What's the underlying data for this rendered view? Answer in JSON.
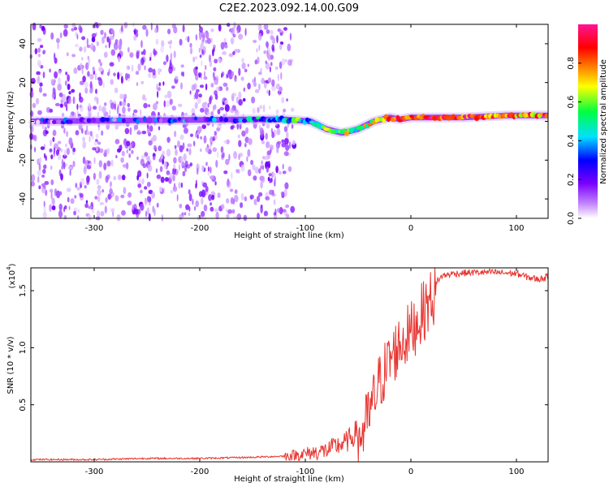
{
  "title": "C2E2.2023.092.14.00.G09",
  "colors": {
    "snr_line": "#e8332e",
    "axis": "#000000",
    "background": "#ffffff"
  },
  "chart_data": [
    {
      "type": "heatmap",
      "title": "C2E2.2023.092.14.00.G09",
      "xlabel": "Height of straight line (km)",
      "ylabel": "Frequency (Hz)",
      "xlim": [
        -360,
        130
      ],
      "ylim": [
        -50,
        50
      ],
      "xticks": [
        -300,
        -200,
        -100,
        0,
        100
      ],
      "yticks": [
        -40,
        -20,
        0,
        20,
        40
      ],
      "colorbar": {
        "label": "Normalized spectral amplitude",
        "range": [
          0,
          1
        ],
        "ticks": [
          "0.0",
          "0.2",
          "0.4",
          "0.6",
          "0.8"
        ],
        "tick_values": [
          0,
          0.2,
          0.4,
          0.6,
          0.8
        ],
        "colormap": [
          "#ffffff",
          "#c080ff",
          "#7a00ff",
          "#0000ff",
          "#00e0ff",
          "#00ff40",
          "#ffff00",
          "#ff8000",
          "#ff0000",
          "#ff1493"
        ]
      },
      "signal_track": [
        {
          "x": -360,
          "freq": 0,
          "amp": 0.2
        },
        {
          "x": -150,
          "freq": 1,
          "amp": 0.35
        },
        {
          "x": -120,
          "freq": 1,
          "amp": 0.45
        },
        {
          "x": -95,
          "freq": 0,
          "amp": 0.5
        },
        {
          "x": -80,
          "freq": -4,
          "amp": 0.55
        },
        {
          "x": -65,
          "freq": -6,
          "amp": 0.6
        },
        {
          "x": -50,
          "freq": -4,
          "amp": 0.6
        },
        {
          "x": -35,
          "freq": 0,
          "amp": 0.7
        },
        {
          "x": -20,
          "freq": 2,
          "amp": 0.8
        },
        {
          "x": -10,
          "freq": 1,
          "amp": 0.75
        },
        {
          "x": 0,
          "freq": 2,
          "amp": 0.85
        },
        {
          "x": 50,
          "freq": 2,
          "amp": 0.85
        },
        {
          "x": 90,
          "freq": 3,
          "amp": 0.8
        },
        {
          "x": 130,
          "freq": 3,
          "amp": 0.75
        }
      ],
      "noise_extent_km": -115
    },
    {
      "type": "line",
      "xlabel": "Height of straight line (km)",
      "ylabel": "SNR (10 * v/v)",
      "y_multiplier_label": "(x10",
      "y_multiplier_exp": "4",
      "y_multiplier_close": ")",
      "xlim": [
        -360,
        130
      ],
      "ylim": [
        0,
        1.7
      ],
      "xticks": [
        -300,
        -200,
        -100,
        0,
        100
      ],
      "yticks": [
        0.5,
        1.0,
        1.5
      ],
      "ytick_labels": [
        "0.5",
        "1.0",
        "1.5"
      ],
      "series": [
        {
          "name": "SNR",
          "x": [
            -360,
            -300,
            -250,
            -200,
            -150,
            -120,
            -100,
            -80,
            -60,
            -50,
            -40,
            -30,
            -20,
            -10,
            0,
            10,
            20,
            30,
            40,
            60,
            80,
            100,
            110,
            120,
            130
          ],
          "y": [
            0.02,
            0.02,
            0.03,
            0.03,
            0.04,
            0.05,
            0.07,
            0.1,
            0.18,
            0.28,
            0.5,
            0.8,
            1.0,
            1.15,
            1.25,
            1.4,
            1.55,
            1.63,
            1.65,
            1.66,
            1.66,
            1.65,
            1.62,
            1.6,
            1.62
          ]
        }
      ]
    }
  ]
}
